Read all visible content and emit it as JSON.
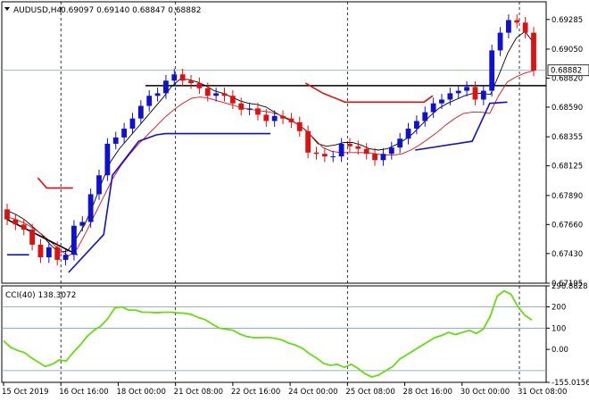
{
  "header": {
    "dropdown_icon": "triangle-down-icon",
    "symbol": "AUDUSD,H4",
    "ohlc": "0.69097 0.69140 0.68847 0.68882"
  },
  "colors": {
    "background": "#ffffff",
    "frame": "#000000",
    "bull_candle": "#1010d0",
    "bear_candle": "#e01010",
    "ma_fast": "#000000",
    "ma_slow": "#e01010",
    "blue_line": "#1010d0",
    "red_line": "#e01010",
    "cci_line": "#66dd11",
    "price_marker_bg": "#ffffff",
    "grid_dashed": "#000000",
    "cci_level": "#7799aa"
  },
  "chart_data": [
    {
      "type": "candlestick",
      "title": "AUDUSD,H4",
      "ylim": [
        0.67195,
        0.69425
      ],
      "y_ticks": [
        "0.69285",
        "0.69050",
        "0.68820",
        "0.68590",
        "0.68355",
        "0.68125",
        "0.67890",
        "0.67660",
        "0.67430",
        "0.67195"
      ],
      "last_price_label": "0.68882",
      "last_price": 0.68882,
      "horizontal_line": 0.6876,
      "x_ticks": [
        "15 Oct 2019",
        "16 Oct 16:00",
        "18 Oct 00:00",
        "21 Oct 08:00",
        "22 Oct 16:00",
        "24 Oct 00:00",
        "25 Oct 08:00",
        "28 Oct 16:00",
        "30 Oct 00:00",
        "31 Oct 08:00"
      ],
      "dashed_vertical_at_ticks": [
        "16 Oct 16:00",
        "21 Oct 08:00",
        "25 Oct 08:00",
        "31 Oct 08:00"
      ],
      "candles_close": [
        0.677,
        0.6766,
        0.6762,
        0.675,
        0.674,
        0.6748,
        0.6738,
        0.6742,
        0.6765,
        0.6768,
        0.679,
        0.6805,
        0.683,
        0.6835,
        0.6842,
        0.685,
        0.686,
        0.6868,
        0.687,
        0.688,
        0.6885,
        0.688,
        0.6878,
        0.6874,
        0.6868,
        0.687,
        0.6868,
        0.6862,
        0.6857,
        0.6858,
        0.6853,
        0.6848,
        0.6852,
        0.685,
        0.6847,
        0.684,
        0.6823,
        0.6822,
        0.682,
        0.682,
        0.683,
        0.6828,
        0.6826,
        0.6822,
        0.6817,
        0.6822,
        0.6827,
        0.6834,
        0.6842,
        0.6848,
        0.6855,
        0.6862,
        0.6865,
        0.687,
        0.6872,
        0.6875,
        0.6865,
        0.6872,
        0.6904,
        0.6918,
        0.6928,
        0.6926,
        0.6918,
        0.6888
      ],
      "candles_prev_close_first": 0.6778,
      "indicator_ma_fast": [
        0.6777,
        0.6774,
        0.677,
        0.6764,
        0.6758,
        0.675,
        0.6744,
        0.6745,
        0.6755,
        0.6766,
        0.6782,
        0.68,
        0.6816,
        0.6826,
        0.6834,
        0.6842,
        0.685,
        0.6858,
        0.6866,
        0.6875,
        0.6881,
        0.6881,
        0.6879,
        0.6876,
        0.6872,
        0.687,
        0.6867,
        0.6864,
        0.6862,
        0.6861,
        0.6859,
        0.6855,
        0.6851,
        0.6848,
        0.6844,
        0.6838,
        0.683,
        0.6828,
        0.6829,
        0.6831,
        0.6831,
        0.6829,
        0.6826,
        0.6825,
        0.6826,
        0.6829,
        0.6833,
        0.6838,
        0.6845,
        0.6852,
        0.6858,
        0.6862,
        0.6865,
        0.6868,
        0.687,
        0.687,
        0.6869,
        0.6885,
        0.6902,
        0.6914,
        0.6919,
        0.691
      ],
      "indicator_ma_slow": [
        0.6772,
        0.677,
        0.6767,
        0.6763,
        0.6758,
        0.6752,
        0.6746,
        0.6741,
        0.6747,
        0.676,
        0.6774,
        0.6788,
        0.6802,
        0.6813,
        0.6822,
        0.683,
        0.6837,
        0.6844,
        0.6851,
        0.6857,
        0.6862,
        0.6866,
        0.6867,
        0.6866,
        0.6864,
        0.6862,
        0.686,
        0.6858,
        0.6857,
        0.6856,
        0.6855,
        0.6853,
        0.685,
        0.6846,
        0.6841,
        0.6834,
        0.6827,
        0.6824,
        0.6823,
        0.6823,
        0.6823,
        0.6823,
        0.6822,
        0.6821,
        0.6821,
        0.6822,
        0.6825,
        0.6829,
        0.6834,
        0.6839,
        0.6845,
        0.685,
        0.6854,
        0.6855,
        0.6855,
        0.6854,
        0.6868,
        0.6879,
        0.6883,
        0.6886,
        0.6888
      ],
      "indicator_blue_steps": [
        [
          0,
          0.6742
        ],
        [
          5,
          0.6742
        ],
        [
          null,
          null
        ],
        [
          14,
          0.6728
        ],
        [
          22,
          0.6758
        ],
        [
          24,
          0.6805
        ],
        [
          30,
          0.6832
        ],
        [
          34,
          0.6837
        ],
        [
          36,
          0.6838
        ],
        [
          60,
          0.6838
        ],
        [
          null,
          null
        ],
        [
          93,
          0.6825
        ],
        [
          106,
          0.6832
        ],
        [
          110,
          0.6862
        ],
        [
          114,
          0.6863
        ]
      ],
      "indicator_red_steps": [
        [
          7,
          0.6803
        ],
        [
          9,
          0.6795
        ],
        [
          15,
          0.6795
        ],
        [
          null,
          null
        ],
        [
          68,
          0.6878
        ],
        [
          72,
          0.687
        ],
        [
          77,
          0.6863
        ],
        [
          95,
          0.6863
        ],
        [
          97,
          0.6868
        ]
      ],
      "indicator_black_trend": [
        [
          0,
          0.677
        ],
        [
          16,
          0.6742
        ]
      ]
    },
    {
      "type": "line",
      "title": "CCI(40) 138.3072",
      "ylim": [
        -155.0156,
        298.8828
      ],
      "y_ticks": [
        "298.8828",
        "200",
        "100",
        "0.00",
        "-155.0156"
      ],
      "levels": [
        200,
        100,
        -100
      ],
      "series": [
        {
          "name": "CCI(40)",
          "values": [
            40,
            10,
            -5,
            -15,
            -40,
            -60,
            -80,
            -70,
            -50,
            -55,
            -15,
            20,
            60,
            90,
            110,
            145,
            195,
            200,
            185,
            185,
            175,
            175,
            172,
            175,
            175,
            172,
            170,
            165,
            150,
            140,
            120,
            100,
            95,
            90,
            72,
            60,
            55,
            55,
            57,
            52,
            45,
            30,
            20,
            5,
            -20,
            -40,
            -65,
            -75,
            -70,
            -85,
            -70,
            -90,
            -115,
            -130,
            -120,
            -100,
            -80,
            -45,
            -25,
            -5,
            15,
            35,
            55,
            65,
            80,
            70,
            80,
            90,
            75,
            95,
            155,
            250,
            275,
            260,
            200,
            160,
            138
          ]
        }
      ]
    }
  ]
}
